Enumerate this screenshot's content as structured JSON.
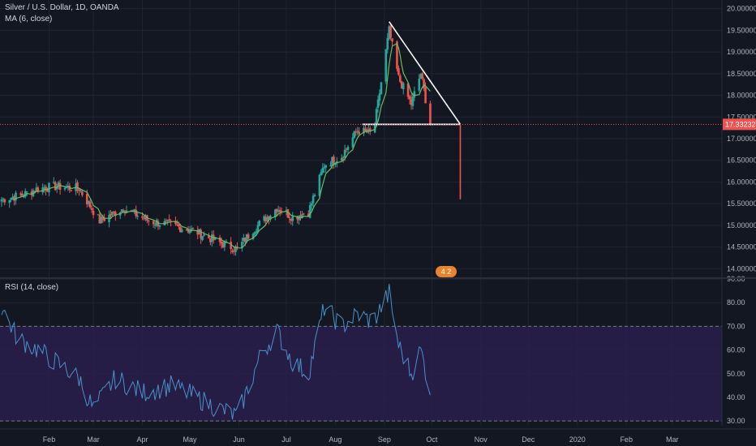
{
  "header": {
    "title": "Silver / U.S. Dollar, 1D, OANDA",
    "ma_label": "MA (6, close)",
    "rsi_label": "RSI (14, close)"
  },
  "badge": {
    "text": "4 2"
  },
  "colors": {
    "background": "#131722",
    "grid": "#1f2433",
    "up": "#26a69a",
    "down": "#ef5350",
    "ma": "#66bb6a",
    "rsi_line": "#4a90c8",
    "rsi_band": "#2a1f4d",
    "pattern": "#ffffff",
    "price_line": "#ef5350",
    "badge": "#e8842c"
  },
  "chart_data": [
    {
      "type": "candlestick",
      "title": "Silver / U.S. Dollar, 1D, OANDA",
      "indicator": "MA (6, close)",
      "x_labels": [
        "Feb",
        "Mar",
        "Apr",
        "May",
        "Jun",
        "Jul",
        "Aug",
        "Sep",
        "Oct",
        "Nov",
        "Dec",
        "2020",
        "Feb",
        "Mar"
      ],
      "y_ticks": [
        "14.00000",
        "14.50000",
        "15.00000",
        "15.50000",
        "16.00000",
        "16.50000",
        "17.00000",
        "17.50000",
        "18.00000",
        "18.50000",
        "19.00000",
        "19.50000",
        "20.00000"
      ],
      "ylim": [
        13.8,
        20.05
      ],
      "last_price": "17.33232",
      "last_price_value": 17.33,
      "close_anchors": [
        {
          "date": "2019-01-02",
          "close": 15.6
        },
        {
          "date": "2019-01-15",
          "close": 15.7
        },
        {
          "date": "2019-01-25",
          "close": 15.85
        },
        {
          "date": "2019-02-05",
          "close": 15.9
        },
        {
          "date": "2019-02-20",
          "close": 15.85
        },
        {
          "date": "2019-03-05",
          "close": 15.1
        },
        {
          "date": "2019-03-20",
          "close": 15.4
        },
        {
          "date": "2019-04-05",
          "close": 15.1
        },
        {
          "date": "2019-04-20",
          "close": 15.0
        },
        {
          "date": "2019-05-05",
          "close": 14.85
        },
        {
          "date": "2019-05-20",
          "close": 14.6
        },
        {
          "date": "2019-05-31",
          "close": 14.45
        },
        {
          "date": "2019-06-10",
          "close": 14.9
        },
        {
          "date": "2019-06-25",
          "close": 15.4
        },
        {
          "date": "2019-07-05",
          "close": 15.2
        },
        {
          "date": "2019-07-15",
          "close": 15.3
        },
        {
          "date": "2019-07-25",
          "close": 16.4
        },
        {
          "date": "2019-08-05",
          "close": 16.6
        },
        {
          "date": "2019-08-15",
          "close": 17.2
        },
        {
          "date": "2019-08-25",
          "close": 17.1
        },
        {
          "date": "2019-08-30",
          "close": 18.3
        },
        {
          "date": "2019-09-04",
          "close": 19.5
        },
        {
          "date": "2019-09-10",
          "close": 18.4
        },
        {
          "date": "2019-09-18",
          "close": 17.8
        },
        {
          "date": "2019-09-24",
          "close": 18.5
        },
        {
          "date": "2019-09-30",
          "close": 17.33
        }
      ],
      "pattern": {
        "descending_line": [
          {
            "date": "2019-09-04",
            "price": 19.7
          },
          {
            "date": "2019-10-19",
            "price": 17.33
          }
        ],
        "support_line": [
          {
            "date": "2019-08-18",
            "price": 17.33
          },
          {
            "date": "2019-10-19",
            "price": 17.33
          }
        ],
        "target_line": [
          {
            "date": "2019-10-19",
            "price": 17.33
          },
          {
            "date": "2019-10-19",
            "price": 15.6
          }
        ]
      }
    },
    {
      "type": "line",
      "title": "RSI (14, close)",
      "y_ticks": [
        "30.00",
        "40.00",
        "50.00",
        "60.00",
        "70.00",
        "80.00",
        "90.00"
      ],
      "ylim": [
        28,
        90
      ],
      "bands": [
        30,
        70
      ],
      "values_anchors": [
        {
          "date": "2019-01-02",
          "value": 78
        },
        {
          "date": "2019-01-12",
          "value": 65
        },
        {
          "date": "2019-01-25",
          "value": 60
        },
        {
          "date": "2019-02-05",
          "value": 55
        },
        {
          "date": "2019-02-20",
          "value": 48
        },
        {
          "date": "2019-03-01",
          "value": 35
        },
        {
          "date": "2019-03-15",
          "value": 48
        },
        {
          "date": "2019-04-01",
          "value": 42
        },
        {
          "date": "2019-04-20",
          "value": 45
        },
        {
          "date": "2019-05-05",
          "value": 40
        },
        {
          "date": "2019-05-20",
          "value": 35
        },
        {
          "date": "2019-05-31",
          "value": 32
        },
        {
          "date": "2019-06-15",
          "value": 58
        },
        {
          "date": "2019-06-25",
          "value": 68
        },
        {
          "date": "2019-07-05",
          "value": 55
        },
        {
          "date": "2019-07-15",
          "value": 50
        },
        {
          "date": "2019-07-25",
          "value": 78
        },
        {
          "date": "2019-08-05",
          "value": 70
        },
        {
          "date": "2019-08-15",
          "value": 75
        },
        {
          "date": "2019-08-25",
          "value": 72
        },
        {
          "date": "2019-09-04",
          "value": 84
        },
        {
          "date": "2019-09-10",
          "value": 62
        },
        {
          "date": "2019-09-18",
          "value": 50
        },
        {
          "date": "2019-09-24",
          "value": 60
        },
        {
          "date": "2019-09-30",
          "value": 43
        }
      ]
    }
  ]
}
